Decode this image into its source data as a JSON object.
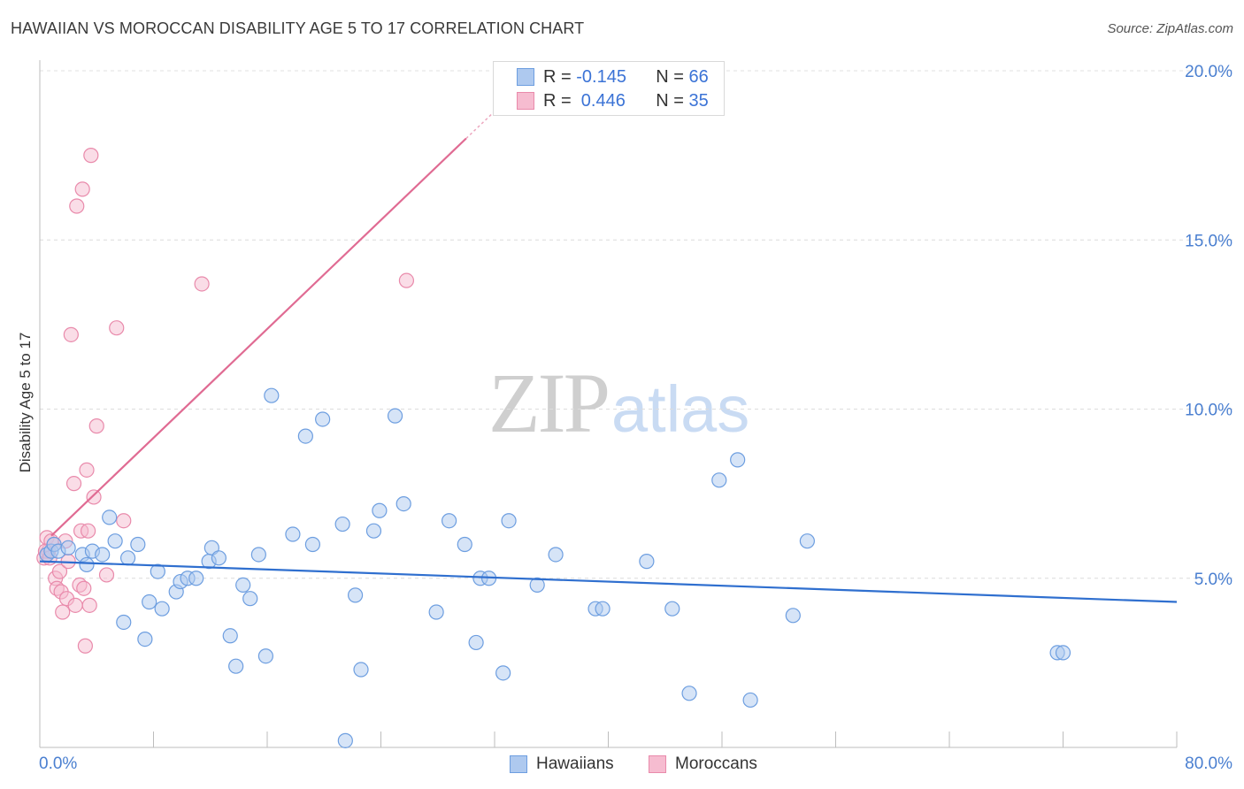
{
  "header": {
    "title": "HAWAIIAN VS MOROCCAN DISABILITY AGE 5 TO 17 CORRELATION CHART",
    "source": "Source: ZipAtlas.com"
  },
  "watermark": {
    "zip": "ZIP",
    "atlas": "atlas"
  },
  "legend": {
    "hawaiians": {
      "r_label": "R =",
      "r_value": "-0.145",
      "n_label": "N =",
      "n_value": "66"
    },
    "moroccans": {
      "r_label": "R =",
      "r_value": " 0.446",
      "n_label": "N =",
      "n_value": "35"
    }
  },
  "bottom_legend": {
    "hawaiians": "Hawaiians",
    "moroccans": "Moroccans"
  },
  "colors": {
    "hawaiians_fill": "#aec9ef",
    "hawaiians_stroke": "#6d9ee0",
    "hawaiians_line": "#2f6fcf",
    "moroccans_fill": "#f6bcd0",
    "moroccans_stroke": "#e98aab",
    "moroccans_line": "#e06b93",
    "tick_text": "#4a7fd0"
  },
  "chart_data": {
    "type": "scatter",
    "title": "HAWAIIAN VS MOROCCAN DISABILITY AGE 5 TO 17 CORRELATION CHART",
    "xlabel": "",
    "ylabel": "Disability Age 5 to 17",
    "xlim": [
      0,
      80
    ],
    "ylim": [
      0,
      20
    ],
    "y_ticks": [
      5,
      10,
      15,
      20
    ],
    "y_tick_labels": [
      "5.0%",
      "10.0%",
      "15.0%",
      "20.0%"
    ],
    "x_tick_labels": [
      "0.0%",
      "80.0%"
    ],
    "grid": "horizontal dashed",
    "series": [
      {
        "name": "Hawaiians",
        "r": -0.145,
        "n": 66,
        "trend": {
          "x": [
            0,
            80
          ],
          "y": [
            5.5,
            4.3
          ]
        },
        "points": [
          [
            0.5,
            5.7
          ],
          [
            0.8,
            5.8
          ],
          [
            1.0,
            6.0
          ],
          [
            1.3,
            5.8
          ],
          [
            2.0,
            5.9
          ],
          [
            3.0,
            5.7
          ],
          [
            3.3,
            5.4
          ],
          [
            3.7,
            5.8
          ],
          [
            4.4,
            5.7
          ],
          [
            4.9,
            6.8
          ],
          [
            5.3,
            6.1
          ],
          [
            5.9,
            3.7
          ],
          [
            6.2,
            5.6
          ],
          [
            6.9,
            6.0
          ],
          [
            7.4,
            3.2
          ],
          [
            7.7,
            4.3
          ],
          [
            8.3,
            5.2
          ],
          [
            8.6,
            4.1
          ],
          [
            9.6,
            4.6
          ],
          [
            9.9,
            4.9
          ],
          [
            10.4,
            5.0
          ],
          [
            11.0,
            5.0
          ],
          [
            11.9,
            5.5
          ],
          [
            12.1,
            5.9
          ],
          [
            12.6,
            5.6
          ],
          [
            13.4,
            3.3
          ],
          [
            13.8,
            2.4
          ],
          [
            14.3,
            4.8
          ],
          [
            14.8,
            4.4
          ],
          [
            15.4,
            5.7
          ],
          [
            15.9,
            2.7
          ],
          [
            16.3,
            10.4
          ],
          [
            17.8,
            6.3
          ],
          [
            18.7,
            9.2
          ],
          [
            19.2,
            6.0
          ],
          [
            19.9,
            9.7
          ],
          [
            21.3,
            6.6
          ],
          [
            21.5,
            0.2
          ],
          [
            22.2,
            4.5
          ],
          [
            22.6,
            2.3
          ],
          [
            23.5,
            6.4
          ],
          [
            23.9,
            7.0
          ],
          [
            25.0,
            9.8
          ],
          [
            25.6,
            7.2
          ],
          [
            27.9,
            4.0
          ],
          [
            28.8,
            6.7
          ],
          [
            29.9,
            6.0
          ],
          [
            30.7,
            3.1
          ],
          [
            31.0,
            5.0
          ],
          [
            31.6,
            5.0
          ],
          [
            32.6,
            2.2
          ],
          [
            33.0,
            6.7
          ],
          [
            35.0,
            4.8
          ],
          [
            36.3,
            5.7
          ],
          [
            39.1,
            4.1
          ],
          [
            39.6,
            4.1
          ],
          [
            42.7,
            5.5
          ],
          [
            44.5,
            4.1
          ],
          [
            45.7,
            1.6
          ],
          [
            47.8,
            7.9
          ],
          [
            49.1,
            8.5
          ],
          [
            50.0,
            1.4
          ],
          [
            53.0,
            3.9
          ],
          [
            54.0,
            6.1
          ],
          [
            71.6,
            2.8
          ],
          [
            72.0,
            2.8
          ]
        ]
      },
      {
        "name": "Moroccans",
        "r": 0.446,
        "n": 35,
        "trend": {
          "x": [
            0,
            30
          ],
          "y": [
            6.1,
            18.0
          ],
          "dashed_to": {
            "x": 32,
            "y": 18.8
          }
        },
        "points": [
          [
            0.3,
            5.6
          ],
          [
            0.5,
            6.2
          ],
          [
            0.6,
            5.8
          ],
          [
            0.8,
            6.1
          ],
          [
            1.0,
            6.0
          ],
          [
            1.1,
            5.0
          ],
          [
            1.2,
            4.7
          ],
          [
            1.4,
            5.2
          ],
          [
            1.5,
            4.6
          ],
          [
            1.6,
            4.0
          ],
          [
            1.8,
            6.1
          ],
          [
            1.9,
            4.4
          ],
          [
            2.0,
            5.5
          ],
          [
            2.2,
            12.2
          ],
          [
            2.4,
            7.8
          ],
          [
            2.5,
            4.2
          ],
          [
            2.6,
            16.0
          ],
          [
            2.8,
            4.8
          ],
          [
            2.9,
            6.4
          ],
          [
            3.0,
            16.5
          ],
          [
            3.1,
            4.7
          ],
          [
            3.2,
            3.0
          ],
          [
            3.3,
            8.2
          ],
          [
            3.4,
            6.4
          ],
          [
            3.5,
            4.2
          ],
          [
            3.6,
            17.5
          ],
          [
            3.8,
            7.4
          ],
          [
            4.0,
            9.5
          ],
          [
            4.7,
            5.1
          ],
          [
            5.4,
            12.4
          ],
          [
            5.9,
            6.7
          ],
          [
            11.4,
            13.7
          ],
          [
            25.8,
            13.8
          ],
          [
            0.4,
            5.8
          ],
          [
            0.7,
            5.6
          ]
        ]
      }
    ]
  }
}
